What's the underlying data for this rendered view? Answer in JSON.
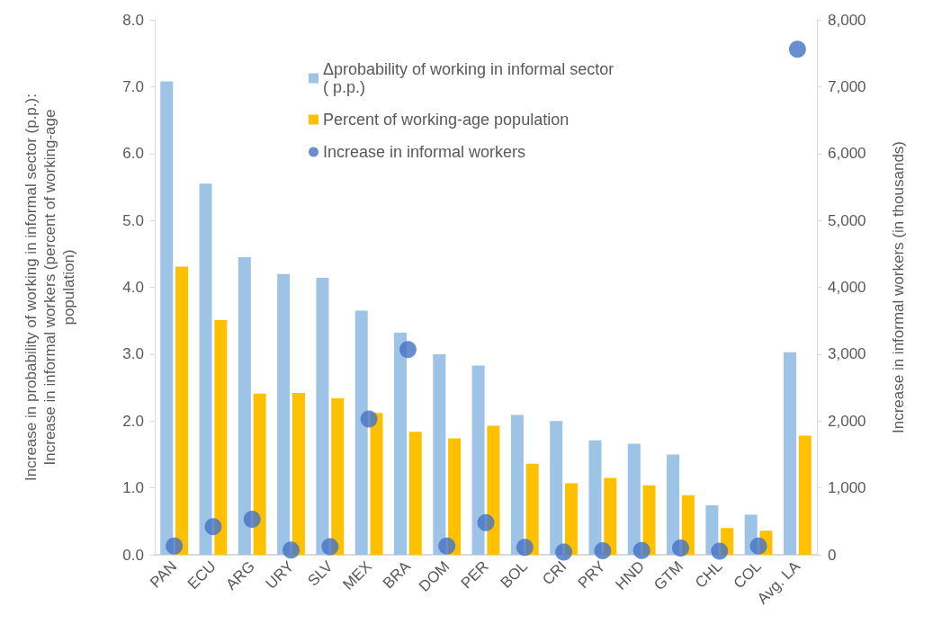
{
  "chart_data": {
    "type": "bar",
    "ylabel": "Increase in probability of working in informal sector (p.p.): Increase in informal workers (percent of working-age population)",
    "y2label": "Increase in informal workers (in thousands)",
    "categories": [
      "PAN",
      "ECU",
      "ARG",
      "URY",
      "SLV",
      "MEX",
      "BRA",
      "DOM",
      "PER",
      "BOL",
      "CRI",
      "PRY",
      "HND",
      "GTM",
      "CHL",
      "COL",
      "Avg. LA"
    ],
    "series": [
      {
        "name": "Δprobability of working in informal sector ( p.p.)",
        "color": "#9dc3e6",
        "values": [
          7.08,
          5.55,
          4.45,
          4.2,
          4.14,
          3.65,
          3.32,
          3.0,
          2.83,
          2.09,
          2.0,
          1.71,
          1.66,
          1.5,
          0.74,
          0.6,
          3.03
        ]
      },
      {
        "name": "Percent of working-age population",
        "color": "#ffc000",
        "values": [
          4.31,
          3.51,
          2.41,
          2.42,
          2.34,
          2.12,
          1.84,
          1.74,
          1.93,
          1.36,
          1.07,
          1.15,
          1.04,
          0.89,
          0.4,
          0.36,
          1.78
        ]
      },
      {
        "name": "Increase in informal workers",
        "type": "scatter",
        "axis": "y2",
        "color": "#4472c4",
        "values": [
          130,
          420,
          530,
          70,
          120,
          2030,
          3070,
          130,
          480,
          110,
          40,
          60,
          65,
          100,
          55,
          130,
          7560
        ]
      }
    ],
    "ylim": [
      0,
      8
    ],
    "yticks": [
      {
        "value": 0,
        "label": "0.0"
      },
      {
        "value": 1,
        "label": "1.0"
      },
      {
        "value": 2,
        "label": "2.0"
      },
      {
        "value": 3,
        "label": "3.0"
      },
      {
        "value": 4,
        "label": "4.0"
      },
      {
        "value": 5,
        "label": "5.0"
      },
      {
        "value": 6,
        "label": "6.0"
      },
      {
        "value": 7,
        "label": "7.0"
      },
      {
        "value": 8,
        "label": "8.0"
      }
    ],
    "y2lim": [
      0,
      8000
    ],
    "y2ticks": [
      0,
      {
        "value": 1000,
        "label": "1,000"
      },
      {
        "value": 2000,
        "label": "2,000"
      },
      {
        "value": 3000,
        "label": "3,000"
      },
      {
        "value": 4000,
        "label": "4,000"
      },
      {
        "value": 5000,
        "label": "5,000"
      },
      {
        "value": 6000,
        "label": "6,000"
      },
      {
        "value": 7000,
        "label": "7,000"
      },
      {
        "value": 8000,
        "label": "8,000"
      }
    ],
    "grid": false,
    "legend": "top",
    "marker": "circle"
  }
}
